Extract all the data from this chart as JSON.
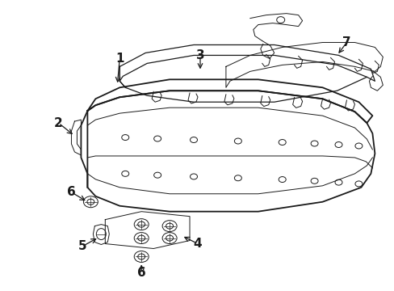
{
  "background_color": "#ffffff",
  "line_color": "#1a1a1a",
  "fig_width": 4.89,
  "fig_height": 3.6,
  "dpi": 100,
  "lw_main": 1.3,
  "lw_thin": 0.7,
  "lw_med": 0.9
}
